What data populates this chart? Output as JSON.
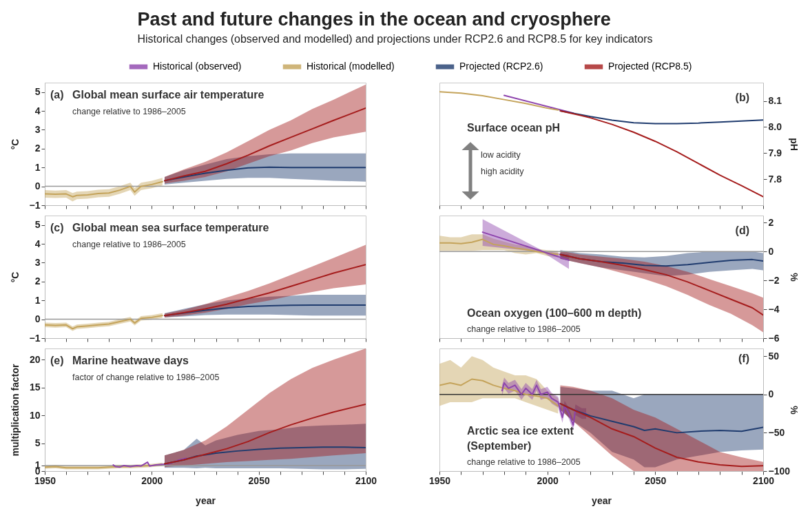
{
  "chart_data": [
    {
      "type": "line",
      "title": "Global mean surface air temperature",
      "subtitle": "change relative to 1986–2005",
      "annotations": [
        "Past and future changes in the ocean and cryosphere",
        "Historical changes (observed and modelled) and projections under RCP2.6 and RCP8.5 for key indicators",
        "(a)"
      ],
      "xlim": [
        1950,
        2100
      ],
      "xticks": [
        1950,
        {
          "value": 1960,
          "label": null
        },
        {
          "value": 1970,
          "label": null
        },
        {
          "value": 1980,
          "label": null
        },
        {
          "value": 1990,
          "label": null
        },
        2000,
        {
          "value": 2010,
          "label": null
        },
        {
          "value": 2020,
          "label": null
        },
        {
          "value": 2030,
          "label": null
        },
        {
          "value": 2040,
          "label": null
        },
        2050,
        {
          "value": 2060,
          "label": null
        },
        {
          "value": 2070,
          "label": null
        },
        {
          "value": 2080,
          "label": null
        },
        {
          "value": 2090,
          "label": null
        },
        2100
      ],
      "ylim": [
        -1,
        5.5
      ],
      "yticks": [
        -1,
        0,
        1,
        2,
        3,
        4,
        5
      ],
      "ylabel": "°C",
      "tick_labels": "y",
      "ref_lines": [
        {
          "axis": "y",
          "value": 0,
          "color": "#999999"
        }
      ],
      "series": [
        {
          "color": "#c4a35a",
          "x": [
            1950,
            1955,
            1960,
            1963,
            1965,
            1970,
            1975,
            1980,
            1985,
            1990,
            1992,
            1995,
            2000,
            2005
          ],
          "values": [
            -0.4,
            -0.42,
            -0.4,
            -0.55,
            -0.48,
            -0.45,
            -0.38,
            -0.35,
            -0.2,
            0,
            -0.3,
            0,
            0.1,
            0.25
          ],
          "lower": [
            -0.6,
            -0.62,
            -0.6,
            -0.8,
            -0.68,
            -0.65,
            -0.58,
            -0.55,
            -0.4,
            -0.2,
            -0.5,
            -0.2,
            -0.1,
            0.05
          ],
          "upper": [
            -0.2,
            -0.22,
            -0.2,
            -0.35,
            -0.28,
            -0.25,
            -0.18,
            -0.15,
            0,
            0.2,
            -0.1,
            0.2,
            0.3,
            0.45
          ]
        },
        {
          "color": "#1f3b6e",
          "x": [
            2006,
            2015,
            2025,
            2035,
            2045,
            2055,
            2065,
            2075,
            2085,
            2100
          ],
          "values": [
            0.3,
            0.5,
            0.7,
            0.85,
            0.98,
            1.02,
            1.0,
            1.0,
            1.0,
            1.0
          ],
          "lower": [
            0.1,
            0.2,
            0.3,
            0.4,
            0.45,
            0.45,
            0.4,
            0.35,
            0.3,
            0.25
          ],
          "upper": [
            0.5,
            0.85,
            1.15,
            1.45,
            1.6,
            1.7,
            1.75,
            1.75,
            1.75,
            1.75
          ]
        },
        {
          "color": "#a51c1c",
          "x": [
            2006,
            2015,
            2025,
            2035,
            2045,
            2055,
            2065,
            2075,
            2085,
            2100
          ],
          "values": [
            0.3,
            0.55,
            0.8,
            1.2,
            1.65,
            2.15,
            2.6,
            3.05,
            3.5,
            4.15
          ],
          "lower": [
            0.15,
            0.3,
            0.5,
            0.8,
            1.2,
            1.6,
            1.9,
            2.3,
            2.6,
            2.9
          ],
          "upper": [
            0.5,
            0.9,
            1.3,
            1.8,
            2.4,
            3.0,
            3.5,
            4.1,
            4.6,
            5.4
          ]
        }
      ]
    },
    {
      "type": "line",
      "title": "Surface ocean pH",
      "annotations": [
        "(b)",
        "low acidity",
        "high acidity"
      ],
      "legend": "top",
      "xlim": [
        1950,
        2100
      ],
      "xticks": [
        1950,
        {
          "value": 1960,
          "label": null
        },
        {
          "value": 1970,
          "label": null
        },
        {
          "value": 1980,
          "label": null
        },
        {
          "value": 1990,
          "label": null
        },
        2000,
        {
          "value": 2010,
          "label": null
        },
        {
          "value": 2020,
          "label": null
        },
        {
          "value": 2030,
          "label": null
        },
        {
          "value": 2040,
          "label": null
        },
        2050,
        {
          "value": 2060,
          "label": null
        },
        {
          "value": 2070,
          "label": null
        },
        {
          "value": 2080,
          "label": null
        },
        {
          "value": 2090,
          "label": null
        },
        2100
      ],
      "ylim": [
        7.7,
        8.17
      ],
      "yticks": [
        7.8,
        7.9,
        {
          "value": 8,
          "label": "8.0"
        },
        8.1
      ],
      "ylabel": "pH",
      "tick_labels": "y",
      "series": [
        {
          "name": "Historical (observed)",
          "color": "#8e44ad",
          "x": [
            1980,
            2012
          ],
          "values": [
            8.121,
            8.053
          ]
        },
        {
          "name": "Historical (modelled)",
          "color": "#c4a35a",
          "x": [
            1950,
            1960,
            1970,
            1980,
            1990,
            2000,
            2005
          ],
          "values": [
            8.135,
            8.13,
            8.12,
            8.105,
            8.09,
            8.072,
            8.065
          ]
        },
        {
          "name": "Projected (RCP2.6)",
          "color": "#1f3b6e",
          "x": [
            2006,
            2015,
            2020,
            2030,
            2040,
            2050,
            2060,
            2070,
            2080,
            2090,
            2100
          ],
          "values": [
            8.062,
            8.048,
            8.04,
            8.026,
            8.016,
            8.013,
            8.013,
            8.015,
            8.019,
            8.023,
            8.027
          ]
        },
        {
          "name": "Projected (RCP8.5)",
          "color": "#a51c1c",
          "x": [
            2006,
            2015,
            2020,
            2030,
            2040,
            2050,
            2060,
            2070,
            2080,
            2090,
            2100
          ],
          "values": [
            8.062,
            8.045,
            8.035,
            8.01,
            7.98,
            7.945,
            7.905,
            7.86,
            7.815,
            7.775,
            7.733
          ]
        }
      ]
    },
    {
      "type": "line",
      "title": "Global mean sea surface temperature",
      "subtitle": "change relative to 1986–2005",
      "annotations": [
        "(c)"
      ],
      "xlim": [
        1950,
        2100
      ],
      "xticks": [
        1950,
        {
          "value": 1960,
          "label": null
        },
        {
          "value": 1970,
          "label": null
        },
        {
          "value": 1980,
          "label": null
        },
        {
          "value": 1990,
          "label": null
        },
        2000,
        {
          "value": 2010,
          "label": null
        },
        {
          "value": 2020,
          "label": null
        },
        {
          "value": 2030,
          "label": null
        },
        {
          "value": 2040,
          "label": null
        },
        2050,
        {
          "value": 2060,
          "label": null
        },
        {
          "value": 2070,
          "label": null
        },
        {
          "value": 2080,
          "label": null
        },
        {
          "value": 2090,
          "label": null
        },
        2100
      ],
      "ylim": [
        -1,
        5.5
      ],
      "yticks": [
        -1,
        0,
        1,
        2,
        3,
        4,
        5
      ],
      "ylabel": "°C",
      "tick_labels": "y",
      "ref_lines": [
        {
          "axis": "y",
          "value": 0,
          "color": "#999999"
        }
      ],
      "series": [
        {
          "color": "#c4a35a",
          "x": [
            1950,
            1955,
            1960,
            1963,
            1965,
            1970,
            1975,
            1980,
            1985,
            1990,
            1992,
            1995,
            2000,
            2005
          ],
          "values": [
            -0.3,
            -0.32,
            -0.3,
            -0.5,
            -0.4,
            -0.35,
            -0.3,
            -0.25,
            -0.12,
            0,
            -0.2,
            0.05,
            0.1,
            0.2
          ],
          "lower": [
            -0.42,
            -0.44,
            -0.42,
            -0.62,
            -0.52,
            -0.47,
            -0.42,
            -0.37,
            -0.24,
            -0.12,
            -0.32,
            -0.07,
            -0.02,
            0.08
          ],
          "upper": [
            -0.18,
            -0.2,
            -0.18,
            -0.38,
            -0.28,
            -0.23,
            -0.18,
            -0.13,
            0,
            0.12,
            -0.08,
            0.17,
            0.22,
            0.32
          ]
        },
        {
          "color": "#1f3b6e",
          "x": [
            2006,
            2015,
            2025,
            2035,
            2045,
            2055,
            2065,
            2075,
            2085,
            2100
          ],
          "values": [
            0.2,
            0.33,
            0.48,
            0.6,
            0.68,
            0.72,
            0.74,
            0.75,
            0.75,
            0.75
          ],
          "lower": [
            0.1,
            0.15,
            0.22,
            0.25,
            0.25,
            0.25,
            0.22,
            0.2,
            0.2,
            0.2
          ],
          "upper": [
            0.32,
            0.55,
            0.8,
            1.0,
            1.1,
            1.2,
            1.25,
            1.3,
            1.3,
            1.3
          ]
        },
        {
          "color": "#a51c1c",
          "x": [
            2006,
            2015,
            2025,
            2035,
            2045,
            2055,
            2065,
            2075,
            2085,
            2100
          ],
          "values": [
            0.2,
            0.35,
            0.55,
            0.8,
            1.1,
            1.4,
            1.75,
            2.1,
            2.45,
            2.9
          ],
          "lower": [
            0.1,
            0.2,
            0.35,
            0.55,
            0.8,
            1.0,
            1.25,
            1.45,
            1.65,
            1.85
          ],
          "upper": [
            0.3,
            0.5,
            0.8,
            1.15,
            1.5,
            1.9,
            2.35,
            2.8,
            3.25,
            3.95
          ]
        }
      ]
    },
    {
      "type": "line",
      "title": "Ocean oxygen (100–600 m depth)",
      "subtitle": "change relative to 1986–2005",
      "annotations": [
        "(d)"
      ],
      "xlim": [
        1950,
        2100
      ],
      "xticks": [
        1950,
        {
          "value": 1960,
          "label": null
        },
        {
          "value": 1970,
          "label": null
        },
        {
          "value": 1980,
          "label": null
        },
        {
          "value": 1990,
          "label": null
        },
        2000,
        {
          "value": 2010,
          "label": null
        },
        {
          "value": 2020,
          "label": null
        },
        {
          "value": 2030,
          "label": null
        },
        {
          "value": 2040,
          "label": null
        },
        2050,
        {
          "value": 2060,
          "label": null
        },
        {
          "value": 2070,
          "label": null
        },
        {
          "value": 2080,
          "label": null
        },
        {
          "value": 2090,
          "label": null
        },
        2100
      ],
      "ylim": [
        -6,
        2.5
      ],
      "yticks": [
        -6,
        -4,
        -2,
        0,
        2
      ],
      "ylabel": "%",
      "tick_labels": "y",
      "ref_lines": [
        {
          "axis": "y",
          "value": 0,
          "color": "#999999"
        }
      ],
      "series": [
        {
          "color": "#c4a35a",
          "x": [
            1950,
            1955,
            1960,
            1965,
            1970,
            1975,
            1980,
            1985,
            1990,
            1995,
            2000,
            2005
          ],
          "values": [
            0.6,
            0.6,
            0.55,
            0.65,
            0.85,
            0.5,
            0.4,
            0.25,
            0.15,
            0,
            -0.1,
            -0.2
          ],
          "lower": [
            0.05,
            0.05,
            0.05,
            0.05,
            0.1,
            0.1,
            0.1,
            -0.1,
            -0.2,
            -0.1,
            -0.3,
            -0.4
          ],
          "upper": [
            1.1,
            1.0,
            1.0,
            1.2,
            1.2,
            0.9,
            0.7,
            0.5,
            0.4,
            0.2,
            0.1,
            0.05
          ]
        },
        {
          "color": "#8e44ad",
          "x": [
            1970,
            1998,
            2010
          ],
          "values": [
            1.35,
            0,
            -0.6
          ],
          "lower": [
            0.4,
            -0.05,
            -1.2
          ],
          "upper": [
            2.25,
            0.05,
            -0.2
          ]
        },
        {
          "color": "#1f3b6e",
          "x": [
            2006,
            2015,
            2025,
            2035,
            2045,
            2055,
            2065,
            2075,
            2085,
            2095,
            2100
          ],
          "values": [
            -0.2,
            -0.5,
            -0.7,
            -0.8,
            -0.95,
            -1.0,
            -0.9,
            -0.75,
            -0.6,
            -0.55,
            -0.65
          ],
          "lower": [
            -0.5,
            -0.8,
            -1.1,
            -1.3,
            -1.5,
            -1.7,
            -1.6,
            -1.4,
            -1.3,
            -1.2,
            -1.3
          ],
          "upper": [
            0.1,
            -0.1,
            -0.2,
            -0.35,
            -0.4,
            -0.3,
            -0.1,
            0,
            0,
            0,
            -0.1
          ]
        },
        {
          "color": "#a51c1c",
          "x": [
            2006,
            2015,
            2025,
            2035,
            2045,
            2055,
            2065,
            2075,
            2085,
            2095,
            2100
          ],
          "values": [
            -0.2,
            -0.5,
            -0.7,
            -0.95,
            -1.25,
            -1.6,
            -2.1,
            -2.7,
            -3.3,
            -3.9,
            -4.4
          ],
          "lower": [
            -0.5,
            -0.8,
            -1.1,
            -1.5,
            -1.9,
            -2.4,
            -3.0,
            -3.7,
            -4.3,
            -5.1,
            -5.6
          ],
          "upper": [
            0.05,
            -0.2,
            -0.35,
            -0.5,
            -0.7,
            -1.0,
            -1.4,
            -1.9,
            -2.4,
            -2.9,
            -3.2
          ]
        }
      ]
    },
    {
      "type": "line",
      "title": "Marine heatwave days",
      "subtitle": "factor of change relative to 1986–2005",
      "annotations": [
        "(e)"
      ],
      "xlabel": "year",
      "xlim": [
        1950,
        2100
      ],
      "xticks": [
        1950,
        {
          "value": 1960,
          "label": null
        },
        {
          "value": 1970,
          "label": null
        },
        {
          "value": 1980,
          "label": null
        },
        {
          "value": 1990,
          "label": null
        },
        2000,
        {
          "value": 2010,
          "label": null
        },
        {
          "value": 2020,
          "label": null
        },
        {
          "value": 2030,
          "label": null
        },
        {
          "value": 2040,
          "label": null
        },
        2050,
        {
          "value": 2060,
          "label": null
        },
        {
          "value": 2070,
          "label": null
        },
        {
          "value": 2080,
          "label": null
        },
        {
          "value": 2090,
          "label": null
        },
        2100
      ],
      "ylim": [
        0,
        22
      ],
      "yticks": [
        0,
        1,
        5,
        10,
        15,
        20
      ],
      "ylabel": "multiplication factor",
      "ref_lines": [
        {
          "axis": "y",
          "value": 1,
          "color": "#999999"
        }
      ],
      "series": [
        {
          "color": "#c4a35a",
          "x": [
            1950,
            1955,
            1960,
            1965,
            1970,
            1975,
            1980,
            1985,
            1990,
            1995,
            2000,
            2005
          ],
          "values": [
            0.7,
            0.8,
            0.6,
            0.6,
            0.6,
            0.6,
            0.7,
            0.8,
            0.8,
            0.9,
            1.0,
            1.2
          ],
          "lower": [
            0.4,
            0.5,
            0.3,
            0.3,
            0.3,
            0.3,
            0.4,
            0.5,
            0.5,
            0.6,
            0.7,
            0.9
          ],
          "upper": [
            1.0,
            1.1,
            0.9,
            0.9,
            0.9,
            0.9,
            1.0,
            1.1,
            1.1,
            1.2,
            1.3,
            1.5
          ]
        },
        {
          "color": "#8e44ad",
          "x": [
            1982,
            1983,
            1985,
            1987,
            1990,
            1993,
            1995,
            1998,
            1999,
            2002,
            2005,
            2008,
            2010,
            2013,
            2016
          ],
          "values": [
            1.1,
            0.8,
            0.7,
            1.0,
            0.8,
            1.0,
            0.9,
            1.6,
            0.9,
            1.1,
            1.2,
            1.3,
            1.6,
            2.0,
            2.3
          ]
        },
        {
          "color": "#1f3b6e",
          "x": [
            2006,
            2015,
            2021,
            2025,
            2030,
            2040,
            2050,
            2060,
            2070,
            2080,
            2090,
            2100
          ],
          "values": [
            1.3,
            2.0,
            2.7,
            2.9,
            3.2,
            3.6,
            3.9,
            4.1,
            4.2,
            4.3,
            4.3,
            4.2
          ],
          "lower": [
            0.6,
            0.6,
            0.5,
            0.6,
            0.5,
            0.5,
            0.5,
            0.5,
            0.4,
            0.3,
            0.3,
            0.4
          ],
          "upper": [
            2.8,
            3.8,
            5.8,
            4.6,
            5.5,
            6.5,
            7.2,
            7.5,
            8.0,
            8.2,
            8.3,
            8.5
          ]
        },
        {
          "color": "#a51c1c",
          "x": [
            2006,
            2015,
            2025,
            2035,
            2045,
            2055,
            2065,
            2075,
            2085,
            2100
          ],
          "values": [
            1.3,
            2.0,
            3.0,
            4.0,
            5.3,
            6.9,
            8.3,
            9.5,
            10.6,
            12.0
          ],
          "lower": [
            0.7,
            1.0,
            1.3,
            1.6,
            1.8,
            2.0,
            2.2,
            2.5,
            2.8,
            3.2
          ],
          "upper": [
            2.8,
            3.8,
            5.5,
            8.0,
            11,
            14,
            16.5,
            18.5,
            20,
            22
          ]
        }
      ]
    },
    {
      "type": "line",
      "title": "Arctic sea ice extent\n(September)",
      "subtitle": "change relative to 1986–2005",
      "annotations": [
        "(f)"
      ],
      "xlabel": "year",
      "xlim": [
        1950,
        2100
      ],
      "xticks": [
        1950,
        {
          "value": 1960,
          "label": null
        },
        {
          "value": 1970,
          "label": null
        },
        {
          "value": 1980,
          "label": null
        },
        {
          "value": 1990,
          "label": null
        },
        2000,
        {
          "value": 2010,
          "label": null
        },
        {
          "value": 2020,
          "label": null
        },
        {
          "value": 2030,
          "label": null
        },
        {
          "value": 2040,
          "label": null
        },
        2050,
        {
          "value": 2060,
          "label": null
        },
        {
          "value": 2070,
          "label": null
        },
        {
          "value": 2080,
          "label": null
        },
        {
          "value": 2090,
          "label": null
        },
        2100
      ],
      "ylim": [
        -100,
        60
      ],
      "yticks": [
        -100,
        -50,
        0,
        50
      ],
      "ylabel": "%",
      "ref_lines": [
        {
          "axis": "y",
          "value": 0,
          "color": "#333333"
        }
      ],
      "series": [
        {
          "color": "#c4a35a",
          "x": [
            1950,
            1955,
            1960,
            1965,
            1970,
            1975,
            1980,
            1985,
            1990,
            1995,
            2000,
            2005
          ],
          "values": [
            12,
            15,
            12,
            20,
            18,
            12,
            8,
            5,
            0,
            -2,
            -5,
            -15
          ],
          "lower": [
            -15,
            -10,
            -10,
            -10,
            -5,
            -5,
            -5,
            -5,
            -10,
            -15,
            -20,
            -25
          ],
          "upper": [
            40,
            45,
            35,
            50,
            45,
            35,
            30,
            25,
            25,
            20,
            5,
            -5
          ]
        },
        {
          "color": "#8e44ad",
          "x": [
            1979,
            1980,
            1982,
            1985,
            1988,
            1990,
            1993,
            1995,
            1997,
            2000,
            2002,
            2005,
            2007,
            2008,
            2010,
            2012,
            2013,
            2016,
            2018
          ],
          "values": [
            5,
            15,
            8,
            12,
            0,
            8,
            0,
            12,
            0,
            3,
            -5,
            -10,
            -30,
            -15,
            -25,
            -40,
            -20,
            -25,
            -25
          ],
          "lower": [
            -2,
            8,
            1,
            5,
            -7,
            1,
            -7,
            5,
            -7,
            -4,
            -12,
            -17,
            -37,
            -22,
            -32,
            -47,
            -27,
            -32,
            -32
          ],
          "upper": [
            12,
            22,
            15,
            19,
            7,
            15,
            7,
            19,
            7,
            10,
            2,
            -3,
            -23,
            -8,
            -18,
            -33,
            -13,
            -18,
            -18
          ]
        },
        {
          "color": "#1f3b6e",
          "x": [
            2006,
            2012,
            2020,
            2030,
            2040,
            2045,
            2050,
            2060,
            2070,
            2080,
            2090,
            2100
          ],
          "values": [
            -12,
            -20,
            -28,
            -35,
            -42,
            -47,
            -45,
            -50,
            -48,
            -47,
            -48,
            -43
          ],
          "lower": [
            -20,
            -35,
            -50,
            -75,
            -85,
            -95,
            -95,
            -85,
            -80,
            -75,
            -73,
            -72
          ],
          "upper": [
            10,
            8,
            5,
            5,
            -5,
            0,
            0,
            0,
            0,
            0,
            0,
            0
          ]
        },
        {
          "color": "#a51c1c",
          "x": [
            2006,
            2012,
            2020,
            2030,
            2040,
            2050,
            2060,
            2070,
            2080,
            2090,
            2100
          ],
          "values": [
            -12,
            -20,
            -30,
            -45,
            -55,
            -70,
            -82,
            -88,
            -92,
            -94,
            -93
          ],
          "lower": [
            -20,
            -35,
            -55,
            -80,
            -100,
            -100,
            -100,
            -100,
            -100,
            -100,
            -100
          ],
          "upper": [
            12,
            10,
            5,
            -5,
            -20,
            -30,
            -45,
            -60,
            -75,
            -82,
            -88
          ]
        }
      ]
    }
  ]
}
